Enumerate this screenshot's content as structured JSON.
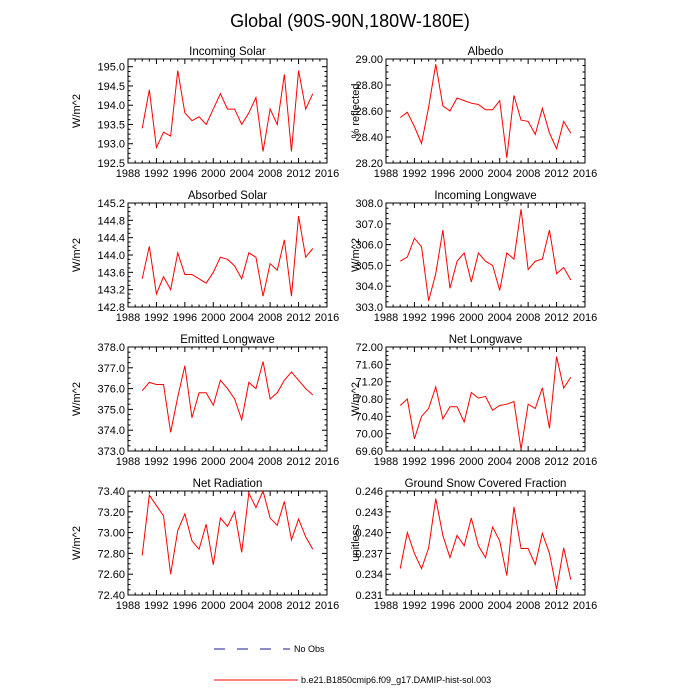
{
  "figure": {
    "title": "Global (90S-90N,180W-180E)"
  },
  "legend": {
    "entries": [
      {
        "label": "No Obs",
        "style": "dashed",
        "color": "#1a1a99"
      },
      {
        "label": "b.e21.B1850cmip6.f09_g17.DAMIP-hist-sol.003",
        "style": "solid",
        "color": "#ff0000"
      }
    ]
  },
  "chart_data": [
    {
      "type": "line",
      "title": "Incoming Solar",
      "ylabel": "W/m^2",
      "xlim": [
        1988,
        2016
      ],
      "xticks": [
        1988,
        1992,
        1996,
        2000,
        2004,
        2008,
        2012,
        2016
      ],
      "ylim": [
        192.5,
        195.2
      ],
      "yticks": [
        "192.5",
        "193.0",
        "193.5",
        "194.0",
        "194.5",
        "195.0"
      ],
      "x": [
        1990,
        1991,
        1992,
        1993,
        1994,
        1995,
        1996,
        1997,
        1998,
        1999,
        2000,
        2001,
        2002,
        2003,
        2004,
        2005,
        2006,
        2007,
        2008,
        2009,
        2010,
        2011,
        2012,
        2013,
        2014
      ],
      "series": [
        {
          "color": "#ff0000",
          "values": [
            193.4,
            194.4,
            192.9,
            193.3,
            193.2,
            194.9,
            193.8,
            193.6,
            193.7,
            193.5,
            193.9,
            194.3,
            193.9,
            193.9,
            193.5,
            193.8,
            194.2,
            192.8,
            193.9,
            193.5,
            194.8,
            192.8,
            194.9,
            193.9,
            194.3
          ]
        }
      ]
    },
    {
      "type": "line",
      "title": "Albedo",
      "ylabel": "% reflected",
      "xlim": [
        1988,
        2016
      ],
      "xticks": [
        1988,
        1992,
        1996,
        2000,
        2004,
        2008,
        2012,
        2016
      ],
      "ylim": [
        28.2,
        29.0
      ],
      "yticks": [
        "28.20",
        "28.40",
        "28.60",
        "28.80",
        "29.00"
      ],
      "x": [
        1990,
        1991,
        1992,
        1993,
        1994,
        1995,
        1996,
        1997,
        1998,
        1999,
        2000,
        2001,
        2002,
        2003,
        2004,
        2005,
        2006,
        2007,
        2008,
        2009,
        2010,
        2011,
        2012,
        2013,
        2014
      ],
      "series": [
        {
          "color": "#ff0000",
          "values": [
            28.55,
            28.59,
            28.48,
            28.35,
            28.63,
            28.96,
            28.64,
            28.6,
            28.7,
            28.68,
            28.66,
            28.65,
            28.61,
            28.61,
            28.68,
            28.24,
            28.72,
            28.53,
            28.52,
            28.42,
            28.62,
            28.43,
            28.31,
            28.52,
            28.43
          ]
        }
      ]
    },
    {
      "type": "line",
      "title": "Absorbed Solar",
      "ylabel": "W/m^2",
      "xlim": [
        1988,
        2016
      ],
      "xticks": [
        1988,
        1992,
        1996,
        2000,
        2004,
        2008,
        2012,
        2016
      ],
      "ylim": [
        142.8,
        145.2
      ],
      "yticks": [
        "142.8",
        "143.2",
        "143.6",
        "144.0",
        "144.4",
        "144.8",
        "145.2"
      ],
      "x": [
        1990,
        1991,
        1992,
        1993,
        1994,
        1995,
        1996,
        1997,
        1998,
        1999,
        2000,
        2001,
        2002,
        2003,
        2004,
        2005,
        2006,
        2007,
        2008,
        2009,
        2010,
        2011,
        2012,
        2013,
        2014
      ],
      "series": [
        {
          "color": "#ff0000",
          "values": [
            143.45,
            144.2,
            143.1,
            143.5,
            143.2,
            144.05,
            143.55,
            143.55,
            143.45,
            143.35,
            143.6,
            143.95,
            143.9,
            143.75,
            143.45,
            144.05,
            143.95,
            143.05,
            143.8,
            143.65,
            144.35,
            143.05,
            144.9,
            143.95,
            144.15
          ]
        }
      ]
    },
    {
      "type": "line",
      "title": "Incoming Longwave",
      "ylabel": "W/m^2",
      "xlim": [
        1988,
        2016
      ],
      "xticks": [
        1988,
        1992,
        1996,
        2000,
        2004,
        2008,
        2012,
        2016
      ],
      "ylim": [
        303.0,
        308.0
      ],
      "yticks": [
        "303.0",
        "304.0",
        "305.0",
        "306.0",
        "307.0",
        "308.0"
      ],
      "x": [
        1990,
        1991,
        1992,
        1993,
        1994,
        1995,
        1996,
        1997,
        1998,
        1999,
        2000,
        2001,
        2002,
        2003,
        2004,
        2005,
        2006,
        2007,
        2008,
        2009,
        2010,
        2011,
        2012,
        2013,
        2014
      ],
      "series": [
        {
          "color": "#ff0000",
          "values": [
            305.2,
            305.4,
            306.3,
            305.9,
            303.3,
            304.6,
            306.7,
            303.9,
            305.2,
            305.6,
            304.2,
            305.6,
            305.2,
            305.0,
            303.8,
            305.6,
            305.3,
            307.7,
            304.8,
            305.2,
            305.3,
            306.7,
            304.6,
            304.9,
            304.3
          ]
        }
      ]
    },
    {
      "type": "line",
      "title": "Emitted Longwave",
      "ylabel": "W/m^2",
      "xlim": [
        1988,
        2016
      ],
      "xticks": [
        1988,
        1992,
        1996,
        2000,
        2004,
        2008,
        2012,
        2016
      ],
      "ylim": [
        373.0,
        378.0
      ],
      "yticks": [
        "373.0",
        "374.0",
        "375.0",
        "376.0",
        "377.0",
        "378.0"
      ],
      "x": [
        1990,
        1991,
        1992,
        1993,
        1994,
        1995,
        1996,
        1997,
        1998,
        1999,
        2000,
        2001,
        2002,
        2003,
        2004,
        2005,
        2006,
        2007,
        2008,
        2009,
        2010,
        2011,
        2012,
        2013,
        2014
      ],
      "series": [
        {
          "color": "#ff0000",
          "values": [
            375.9,
            376.3,
            376.2,
            376.2,
            373.9,
            375.6,
            377.1,
            374.6,
            375.8,
            375.8,
            375.2,
            376.4,
            376.0,
            375.5,
            374.5,
            376.3,
            376.0,
            377.3,
            375.5,
            375.8,
            376.4,
            376.8,
            376.4,
            376.0,
            375.7
          ]
        }
      ]
    },
    {
      "type": "line",
      "title": "Net Longwave",
      "ylabel": "W/m^2",
      "xlim": [
        1988,
        2016
      ],
      "xticks": [
        1988,
        1992,
        1996,
        2000,
        2004,
        2008,
        2012,
        2016
      ],
      "ylim": [
        69.6,
        72.0
      ],
      "yticks": [
        "69.60",
        "70.00",
        "70.40",
        "70.80",
        "71.20",
        "71.60",
        "72.00"
      ],
      "x": [
        1990,
        1991,
        1992,
        1993,
        1994,
        1995,
        1996,
        1997,
        1998,
        1999,
        2000,
        2001,
        2002,
        2003,
        2004,
        2005,
        2006,
        2007,
        2008,
        2009,
        2010,
        2011,
        2012,
        2013,
        2014
      ],
      "series": [
        {
          "color": "#ff0000",
          "values": [
            70.65,
            70.8,
            69.88,
            70.4,
            70.58,
            71.08,
            70.34,
            70.62,
            70.62,
            70.27,
            70.95,
            70.82,
            70.86,
            70.54,
            70.65,
            70.68,
            70.74,
            69.64,
            70.68,
            70.58,
            71.06,
            70.12,
            71.78,
            71.05,
            71.3
          ]
        }
      ]
    },
    {
      "type": "line",
      "title": "Net Radiation",
      "ylabel": "W/m^2",
      "xlim": [
        1988,
        2016
      ],
      "xticks": [
        1988,
        1992,
        1996,
        2000,
        2004,
        2008,
        2012,
        2016
      ],
      "ylim": [
        72.4,
        73.4
      ],
      "yticks": [
        "72.40",
        "72.60",
        "72.80",
        "73.00",
        "73.20",
        "73.40"
      ],
      "x": [
        1990,
        1991,
        1992,
        1993,
        1994,
        1995,
        1996,
        1997,
        1998,
        1999,
        2000,
        2001,
        2002,
        2003,
        2004,
        2005,
        2006,
        2007,
        2008,
        2009,
        2010,
        2011,
        2012,
        2013,
        2014
      ],
      "series": [
        {
          "color": "#ff0000",
          "values": [
            72.78,
            73.36,
            73.26,
            73.16,
            72.6,
            73.02,
            73.18,
            72.92,
            72.84,
            73.08,
            72.69,
            73.14,
            73.06,
            73.2,
            72.81,
            73.38,
            73.24,
            73.4,
            73.14,
            73.07,
            73.3,
            72.93,
            73.13,
            72.96,
            72.84
          ]
        }
      ]
    },
    {
      "type": "line",
      "title": "Ground Snow Covered Fraction",
      "ylabel": "unitless",
      "xlim": [
        1988,
        2016
      ],
      "xticks": [
        1988,
        1992,
        1996,
        2000,
        2004,
        2008,
        2012,
        2016
      ],
      "ylim": [
        0.231,
        0.246
      ],
      "yticks": [
        "0.231",
        "0.234",
        "0.237",
        "0.240",
        "0.243",
        "0.246"
      ],
      "x": [
        1990,
        1991,
        1992,
        1993,
        1994,
        1995,
        1996,
        1997,
        1998,
        1999,
        2000,
        2001,
        2002,
        2003,
        2004,
        2005,
        2006,
        2007,
        2008,
        2009,
        2010,
        2011,
        2012,
        2013,
        2014
      ],
      "series": [
        {
          "color": "#ff0000",
          "values": [
            0.2348,
            0.24,
            0.237,
            0.2348,
            0.2378,
            0.2449,
            0.2396,
            0.2364,
            0.2396,
            0.2381,
            0.2421,
            0.2381,
            0.2364,
            0.2408,
            0.2388,
            0.2338,
            0.2437,
            0.2377,
            0.2377,
            0.2354,
            0.2399,
            0.237,
            0.2318,
            0.2378,
            0.2332
          ]
        }
      ]
    }
  ]
}
